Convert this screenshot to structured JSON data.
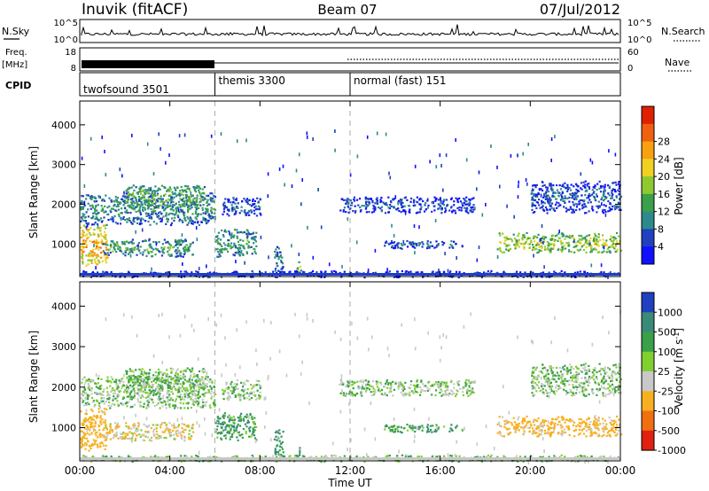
{
  "header": {
    "station": "Inuvik (fitACF)",
    "beam": "Beam 07",
    "date": "07/Jul/2012"
  },
  "strip_labels": {
    "nsky": "N.Sky",
    "nsearch": "N.Search",
    "freq_top": "Freq.",
    "freq_unit": "[MHz]",
    "nave": "Nave",
    "cpid": "CPID"
  },
  "strip_ticks": {
    "noise_left_top": "10^5",
    "noise_left_bottom": "10^0",
    "noise_right_top": "10^5",
    "noise_right_bottom": "10^0",
    "freq_left_top": "18",
    "freq_left_bottom": "8",
    "nave_right_top": "60",
    "nave_right_bottom": "0"
  },
  "cpid_segments": [
    {
      "label": "twofsound 3501",
      "start_hour": 0,
      "end_hour": 6
    },
    {
      "label": "themis 3300",
      "start_hour": 6,
      "end_hour": 12
    },
    {
      "label": "normal (fast) 151",
      "start_hour": 12,
      "end_hour": 24
    }
  ],
  "power_colorbar": {
    "label": "Power [dB]",
    "ticks": [
      "4",
      "8",
      "12",
      "16",
      "20",
      "24",
      "28"
    ],
    "colors": [
      "#1010ff",
      "#2040c0",
      "#2c8a8a",
      "#3aa04a",
      "#90c830",
      "#f0d020",
      "#f8a010",
      "#f06010",
      "#e02000"
    ]
  },
  "velocity_colorbar": {
    "label": "Velocity [m s^-1]",
    "ticks": [
      "1000",
      "500",
      "100",
      "25",
      "-25",
      "-100",
      "-500",
      "-1000"
    ],
    "colors": [
      "#2040c0",
      "#3a8a7a",
      "#3aa04a",
      "#80d030",
      "#c8c8c8",
      "#f8b020",
      "#f07010",
      "#e02010"
    ]
  },
  "chart_data": {
    "type": "heatmap",
    "title": "Inuvik (fitACF) Beam 07 07/Jul/2012",
    "xlabel": "Time UT",
    "ylabel": "Slant Range [km]",
    "x_ticks": [
      "00:00",
      "04:00",
      "08:00",
      "12:00",
      "16:00",
      "20:00",
      "00:00"
    ],
    "x_range_hours": [
      0,
      24
    ],
    "y_ticks": [
      1000,
      2000,
      3000,
      4000
    ],
    "y_range_km": [
      180,
      4600
    ],
    "panels": [
      "Power [dB]",
      "Velocity [m s^-1]"
    ],
    "mode_change_hours": [
      6,
      12
    ],
    "echo_regions": [
      {
        "t0": 0.0,
        "t1": 1.2,
        "r0": 450,
        "r1": 1500,
        "power_db": 26,
        "velocity": -300
      },
      {
        "t0": 0.0,
        "t1": 6.0,
        "r0": 1500,
        "r1": 2300,
        "power_db": 12,
        "velocity": 0
      },
      {
        "t0": 1.0,
        "t1": 5.0,
        "r0": 700,
        "r1": 1150,
        "power_db": 14,
        "velocity": -80
      },
      {
        "t0": 2.0,
        "t1": 5.5,
        "r0": 1900,
        "r1": 2500,
        "power_db": 16,
        "velocity": 10
      },
      {
        "t0": 6.0,
        "t1": 7.8,
        "r0": 700,
        "r1": 1400,
        "power_db": 14,
        "velocity": 80
      },
      {
        "t0": 6.3,
        "t1": 8.0,
        "r0": 1700,
        "r1": 2200,
        "power_db": 8,
        "velocity": 0
      },
      {
        "t0": 8.6,
        "t1": 9.0,
        "r0": 300,
        "r1": 1000,
        "power_db": 12,
        "velocity": 120
      },
      {
        "t0": 9.6,
        "t1": 9.8,
        "r0": 300,
        "r1": 600,
        "power_db": 20,
        "velocity": 500
      },
      {
        "t0": 11.5,
        "t1": 17.5,
        "r0": 1800,
        "r1": 2200,
        "power_db": 8,
        "velocity": 0
      },
      {
        "t0": 13.5,
        "t1": 17.0,
        "r0": 900,
        "r1": 1100,
        "power_db": 10,
        "velocity": 80
      },
      {
        "t0": 18.5,
        "t1": 24.0,
        "r0": 800,
        "r1": 1300,
        "power_db": 20,
        "velocity": -150
      },
      {
        "t0": 20.0,
        "t1": 24.0,
        "r0": 1800,
        "r1": 2600,
        "power_db": 8,
        "velocity": 0
      },
      {
        "t0": 0.0,
        "t1": 24.0,
        "r0": 180,
        "r1": 340,
        "power_db": 6,
        "velocity": 20
      }
    ]
  }
}
